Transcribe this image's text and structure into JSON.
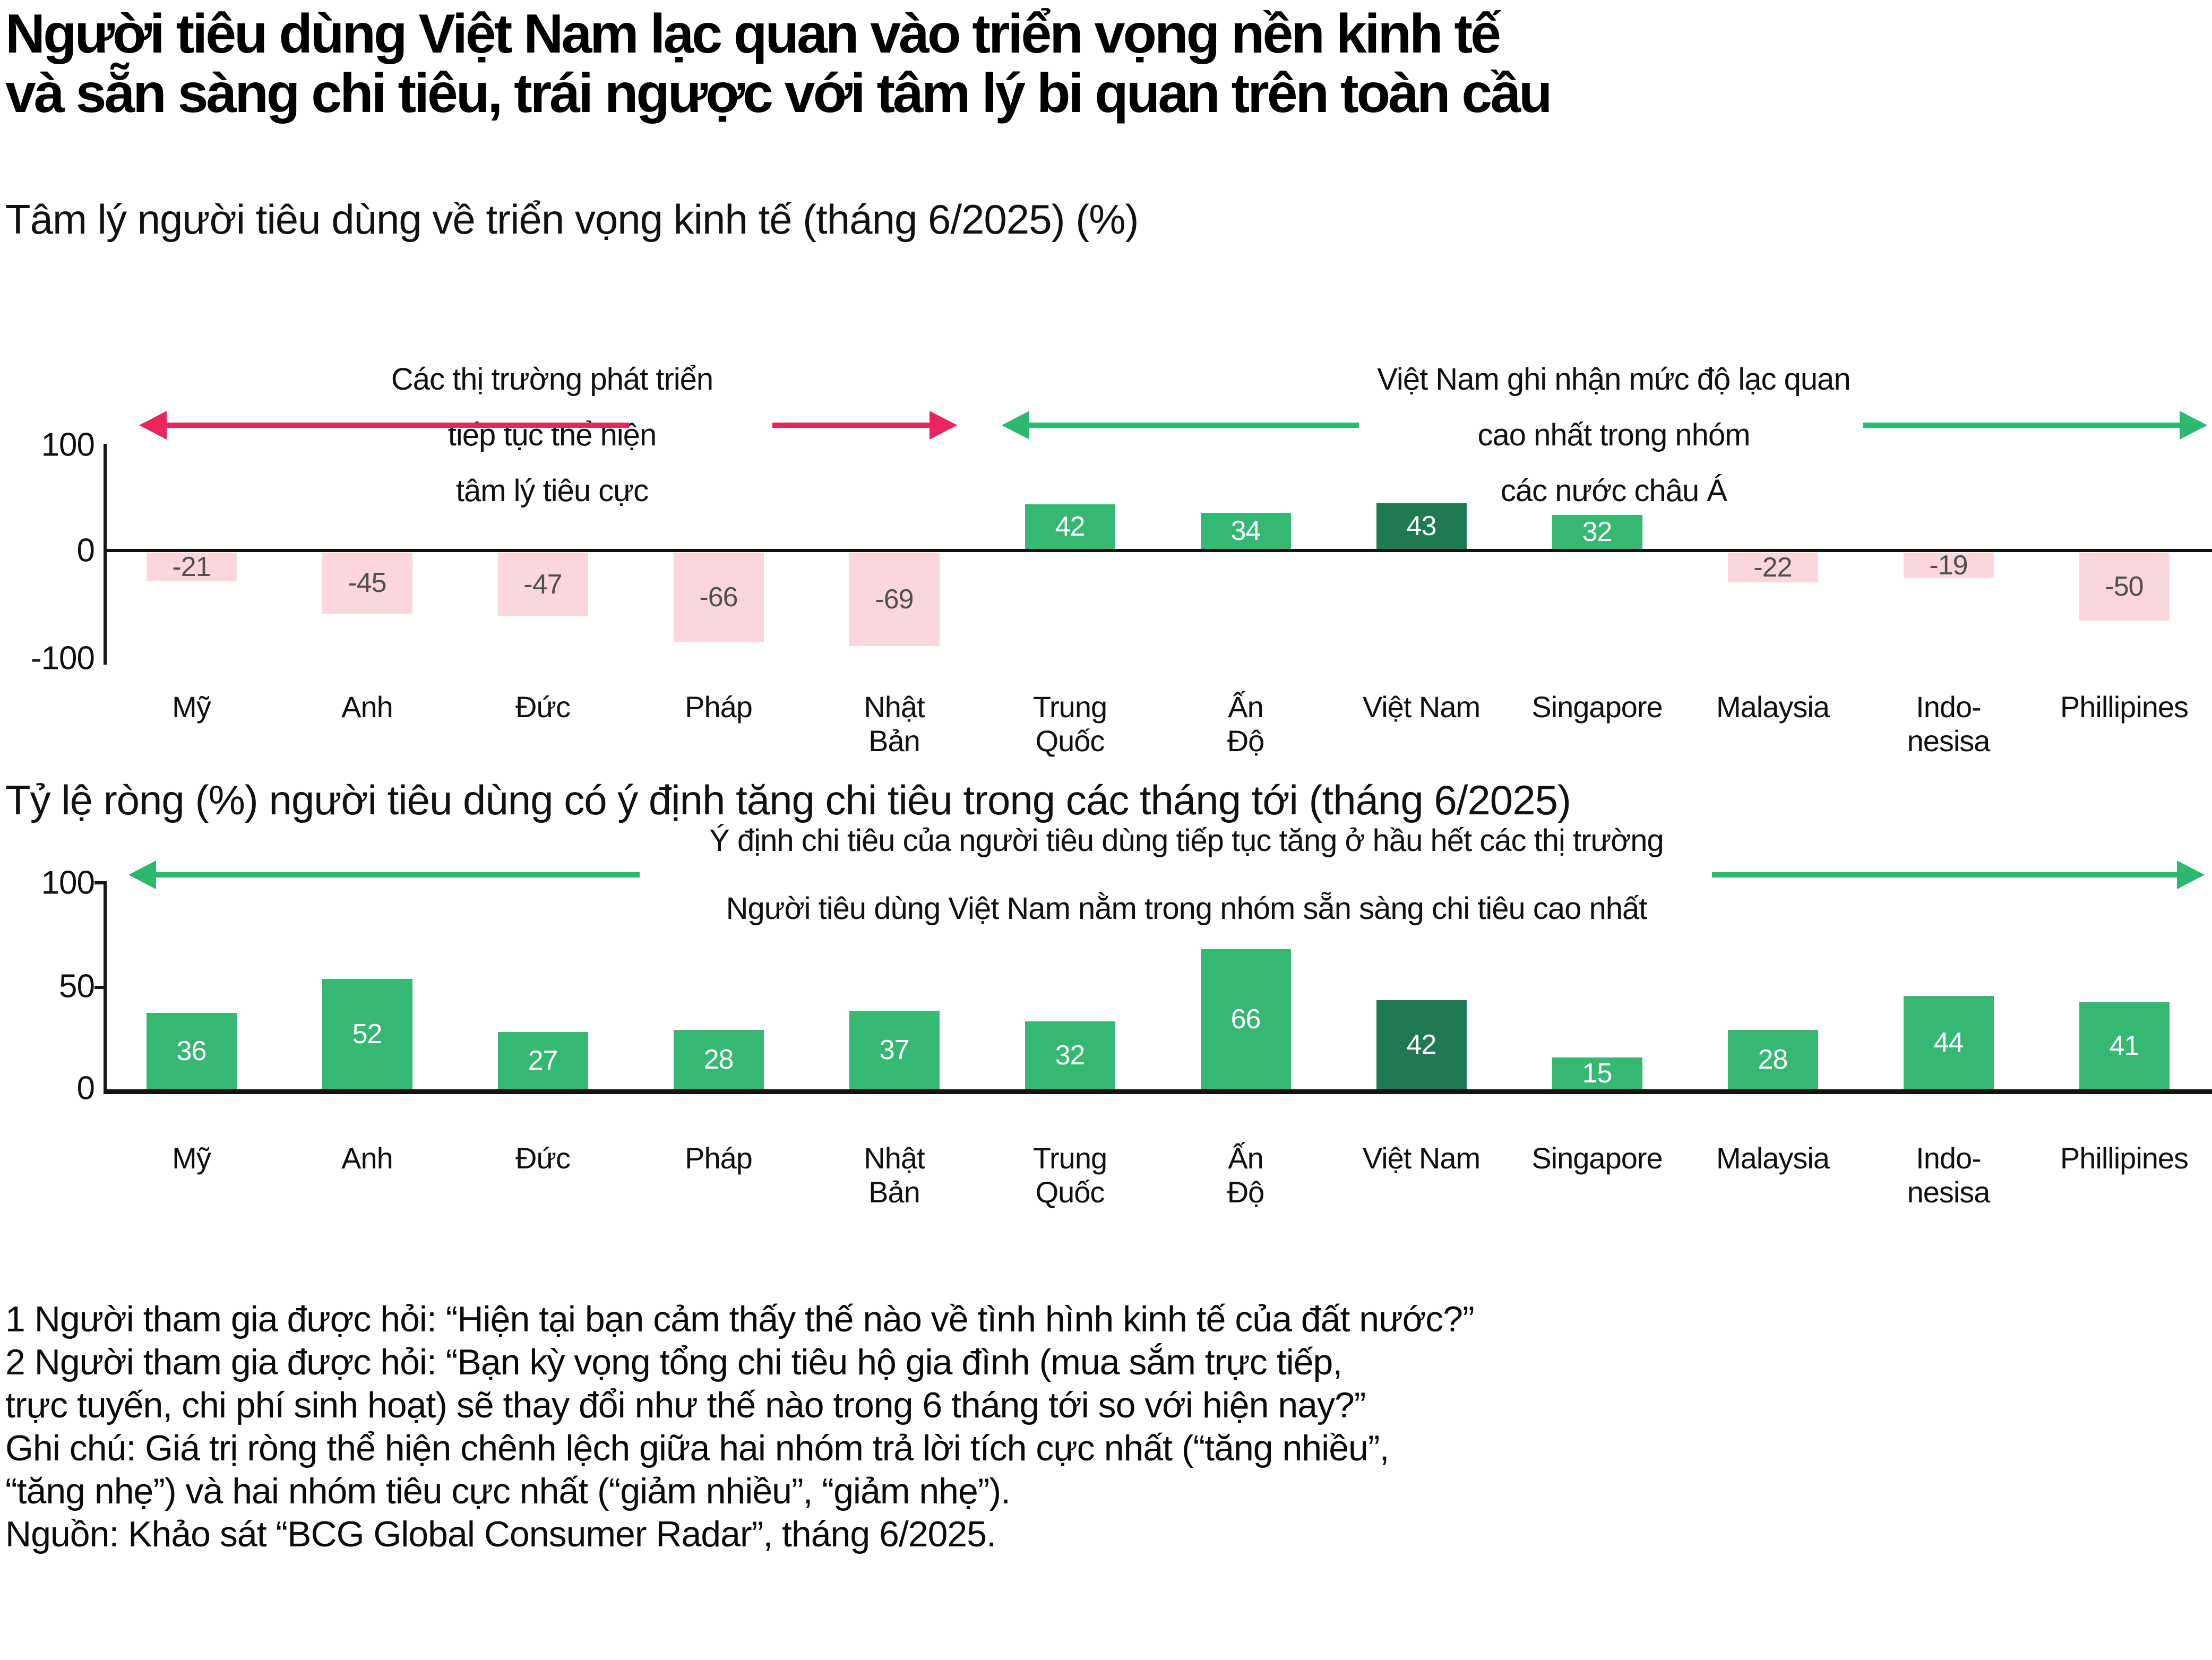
{
  "page": {
    "title_line1": "Người tiêu dùng Việt Nam lạc quan vào triển vọng nền kinh tế",
    "title_line2": "và sẵn sàng chi tiêu, trái ngược với tâm lý bi quan trên toàn cầu"
  },
  "colors": {
    "positive_green": "#34b873",
    "vietnam_dark_green": "#1f7a53",
    "negative_pink": "#fbd6dd",
    "negative_text": "#4f4f4f",
    "positive_text": "#ffffff",
    "red_arrow": "#e8255c",
    "green_arrow": "#2db872",
    "axis_black": "#141414"
  },
  "chart_data": [
    {
      "type": "bar",
      "title": "Tâm lý người tiêu dùng về triển vọng kinh tế (tháng 6/2025) (%)",
      "categories": [
        "Mỹ",
        "Anh",
        "Đức",
        "Pháp",
        "Nhật\nBản",
        "Trung\nQuốc",
        "Ấn\nĐộ",
        "Việt Nam",
        "Singapore",
        "Malaysia",
        "Indo-\nnesisa",
        "Phillipines"
      ],
      "values": [
        -21,
        -45,
        -47,
        -66,
        -69,
        42,
        34,
        43,
        32,
        -22,
        -19,
        -50
      ],
      "ylim": [
        -100,
        100
      ],
      "yticks": [
        100,
        0,
        -100
      ],
      "grid": false,
      "highlight_category": "Việt Nam",
      "annotations": [
        {
          "side": "left",
          "arrow_color": "#e8255c",
          "text_lines": [
            "Các thị trường phát triển",
            "tiếp tục thể hiện",
            "tâm lý tiêu cực"
          ]
        },
        {
          "side": "right",
          "arrow_color": "#2db872",
          "text_lines": [
            "Việt Nam ghi nhận mức độ lạc quan",
            "cao nhất trong nhóm",
            "các nước châu Á"
          ]
        }
      ]
    },
    {
      "type": "bar",
      "title": "Tỷ lệ ròng (%) người tiêu dùng có ý định tăng chi tiêu trong các tháng tới (tháng 6/2025)",
      "categories": [
        "Mỹ",
        "Anh",
        "Đức",
        "Pháp",
        "Nhật\nBản",
        "Trung\nQuốc",
        "Ấn\nĐộ",
        "Việt Nam",
        "Singapore",
        "Malaysia",
        "Indo-\nnesisa",
        "Phillipines"
      ],
      "values": [
        36,
        52,
        27,
        28,
        37,
        32,
        66,
        42,
        15,
        28,
        44,
        41
      ],
      "ylim": [
        0,
        100
      ],
      "yticks": [
        100,
        50,
        0
      ],
      "grid": false,
      "highlight_category": "Việt Nam",
      "annotations": [
        {
          "side": "center",
          "arrow_color": "#2db872",
          "text_lines": [
            "Ý định chi tiêu của người tiêu dùng tiếp tục tăng ở hầu hết các thị trường",
            "Người tiêu dùng Việt Nam nằm trong nhóm sẵn sàng chi tiêu cao nhất"
          ]
        }
      ]
    }
  ],
  "footnotes": {
    "lines": [
      "1 Người tham gia được hỏi: “Hiện tại bạn cảm thấy thế nào về tình hình kinh tế của đất nước?”",
      "2 Người tham gia được hỏi: “Bạn kỳ vọng tổng chi tiêu hộ gia đình (mua sắm trực tiếp,",
      "trực tuyến, chi phí sinh hoạt) sẽ thay đổi như thế nào trong 6 tháng tới so với hiện nay?”",
      "Ghi chú: Giá trị ròng thể hiện chênh lệch giữa hai nhóm trả lời tích cực nhất (“tăng nhiều”,",
      "“tăng nhẹ”) và hai nhóm tiêu cực nhất (“giảm nhiều”, “giảm nhẹ”).",
      "Nguồn: Khảo sát “BCG Global Consumer Radar”, tháng 6/2025."
    ]
  }
}
